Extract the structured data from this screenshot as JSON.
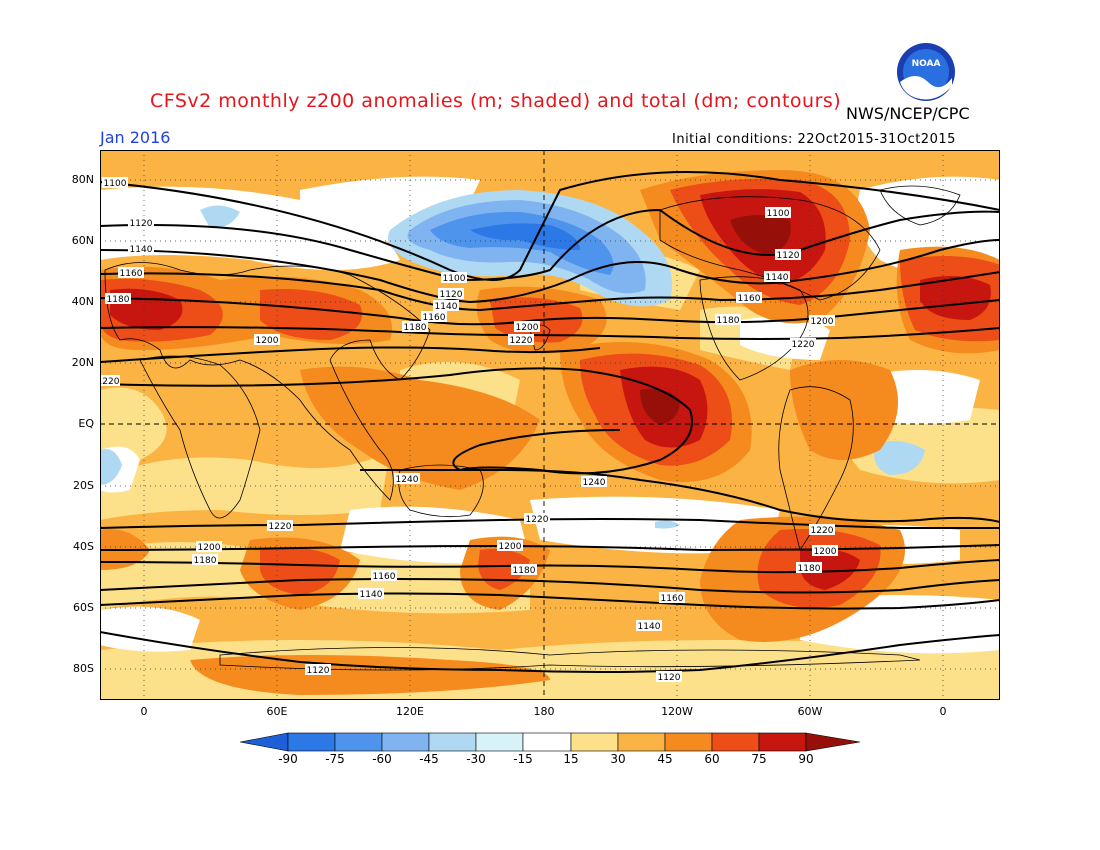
{
  "title": "CFSv2 monthly z200 anomalies (m; shaded) and total (dm; contours)",
  "agency": "NWS/NCEP/CPC",
  "month": "Jan 2016",
  "initial_conditions": "Initial conditions: 22Oct2015-31Oct2015",
  "logo_text": "NOAA",
  "lat_labels": [
    "80N",
    "60N",
    "40N",
    "20N",
    "EQ",
    "20S",
    "40S",
    "60S",
    "80S"
  ],
  "lon_labels": [
    "0",
    "60E",
    "120E",
    "180",
    "120W",
    "60W",
    "0"
  ],
  "colorbar": {
    "labels": [
      "-90",
      "-75",
      "-60",
      "-45",
      "-30",
      "-15",
      "15",
      "30",
      "45",
      "60",
      "75",
      "90"
    ],
    "colors": [
      "#1e5fd8",
      "#2c78e6",
      "#4f94ec",
      "#7fb4f0",
      "#afd9f3",
      "#d8f2fa",
      "#ffffff",
      "#fde08a",
      "#fbb344",
      "#f58a1f",
      "#ed4d16",
      "#c7160f",
      "#961009"
    ]
  },
  "contour_labels": {
    "values": [
      "1100",
      "1120",
      "1140",
      "1160",
      "1180",
      "1200",
      "1220",
      "1240"
    ]
  },
  "colors": {
    "title": "#e8141b",
    "month": "#2040e0"
  }
}
